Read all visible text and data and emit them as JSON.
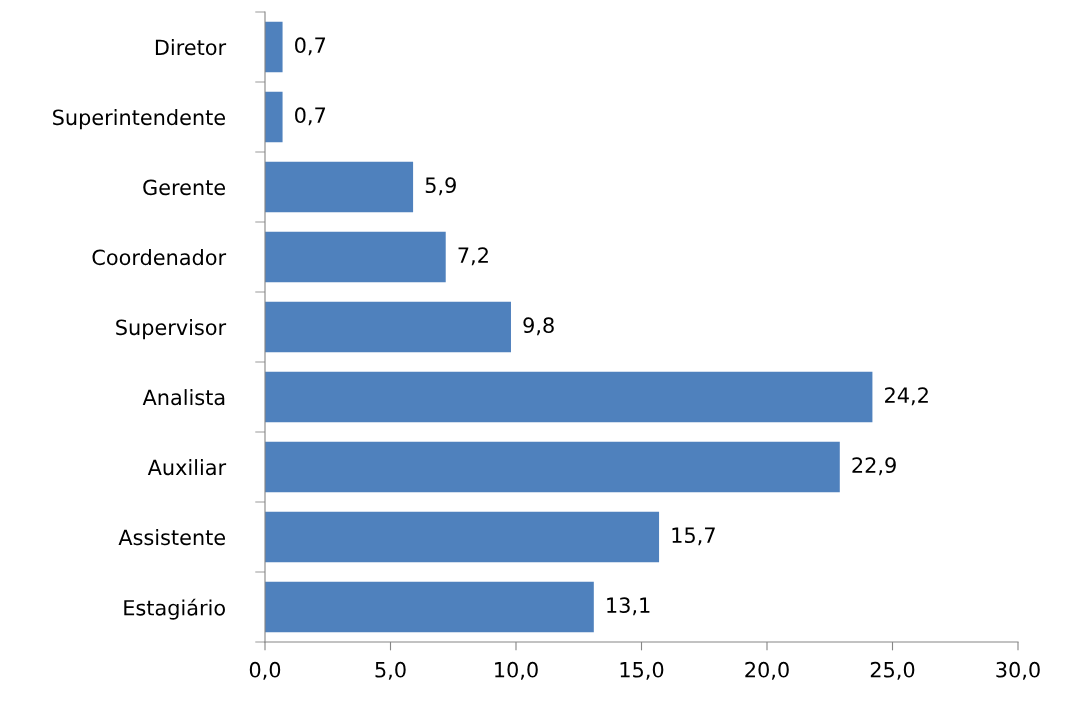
{
  "chart_data": {
    "type": "bar",
    "orientation": "horizontal",
    "categories": [
      "Diretor",
      "Superintendente",
      "Gerente",
      "Coordenador",
      "Supervisor",
      "Analista",
      "Auxiliar",
      "Assistente",
      "Estagiário"
    ],
    "values": [
      0.7,
      0.7,
      5.9,
      7.2,
      9.8,
      24.2,
      22.9,
      15.7,
      13.1
    ],
    "value_labels": [
      "0,7",
      "0,7",
      "5,9",
      "7,2",
      "9,8",
      "24,2",
      "22,9",
      "15,7",
      "13,1"
    ],
    "color": "#4f81bd",
    "xlim": [
      0,
      30
    ],
    "xticks": [
      {
        "value": 0,
        "label": "0,0"
      },
      {
        "value": 5,
        "label": "5,0"
      },
      {
        "value": 10,
        "label": "10,0"
      },
      {
        "value": 15,
        "label": "15,0"
      },
      {
        "value": 20,
        "label": "20,0"
      },
      {
        "value": 25,
        "label": "25,0"
      },
      {
        "value": 30,
        "label": "30,0"
      }
    ],
    "grid": false,
    "legend": false
  }
}
